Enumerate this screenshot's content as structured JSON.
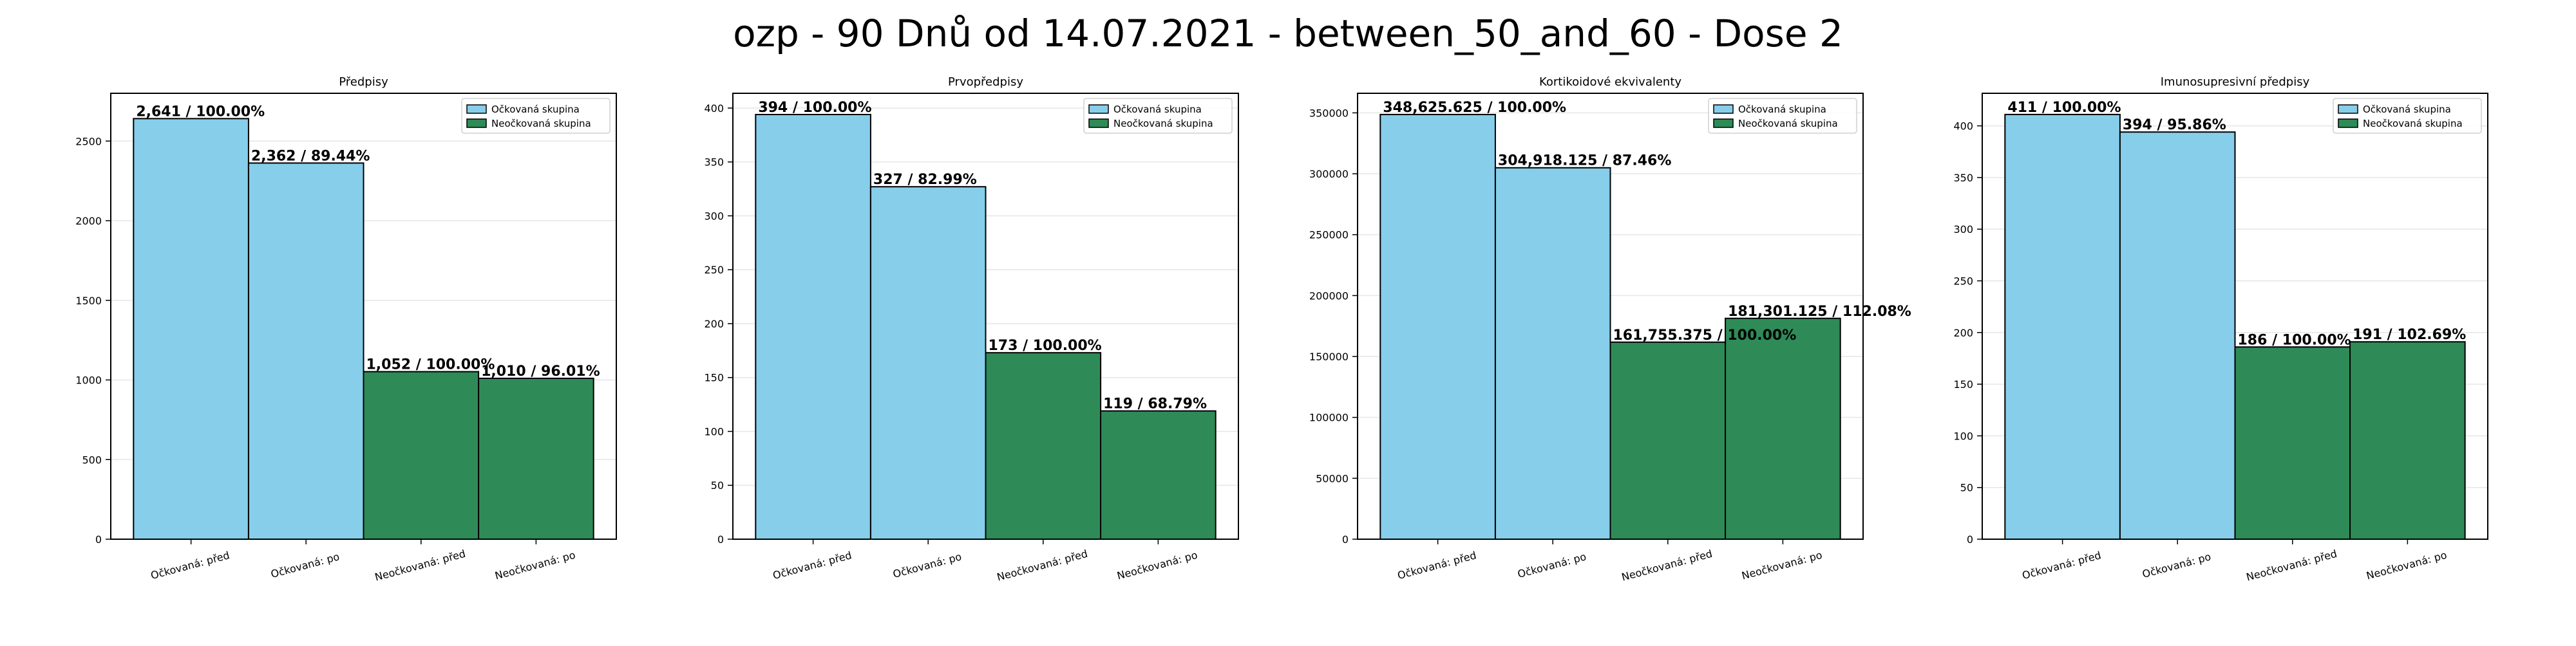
{
  "figure": {
    "suptitle": "ozp - 90 Dnů od 14.07.2021 - between_50_and_60 - Dose 2"
  },
  "colors": {
    "vaccinated": "#87ceeb",
    "unvaccinated": "#2e8b57",
    "edge": "#000000",
    "grid": "#e6e6e6"
  },
  "chart_data": [
    {
      "type": "bar",
      "title": "Předpisy",
      "categories": [
        "Očkovaná: před",
        "Očkovaná: po",
        "Neočkovaná: před",
        "Neočkovaná: po"
      ],
      "values": [
        2641,
        2362,
        1052,
        1010
      ],
      "bar_labels": [
        "2,641 / 100.00%",
        "2,362 / 89.44%",
        "1,052 / 100.00%",
        "1,010 / 96.01%"
      ],
      "groups": [
        "vaccinated",
        "vaccinated",
        "unvaccinated",
        "unvaccinated"
      ],
      "ylim": [
        0,
        2800
      ],
      "yticks": [
        0,
        500,
        1000,
        1500,
        2000,
        2500
      ],
      "ytick_labels": [
        "0",
        "500",
        "1000",
        "1500",
        "2000",
        "2500"
      ],
      "legend": [
        "Očkovaná skupina",
        "Neočkovaná skupina"
      ],
      "legend_position": "top-right",
      "grid": true
    },
    {
      "type": "bar",
      "title": "Prvopředpisy",
      "categories": [
        "Očkovaná: před",
        "Očkovaná: po",
        "Neočkovaná: před",
        "Neočkovaná: po"
      ],
      "values": [
        394,
        327,
        173,
        119
      ],
      "bar_labels": [
        "394 / 100.00%",
        "327 / 82.99%",
        "173 / 100.00%",
        "119 / 68.79%"
      ],
      "groups": [
        "vaccinated",
        "vaccinated",
        "unvaccinated",
        "unvaccinated"
      ],
      "ylim": [
        0,
        413.7
      ],
      "yticks": [
        0,
        50,
        100,
        150,
        200,
        250,
        300,
        350,
        400
      ],
      "ytick_labels": [
        "0",
        "50",
        "100",
        "150",
        "200",
        "250",
        "300",
        "350",
        "400"
      ],
      "legend": [
        "Očkovaná skupina",
        "Neočkovaná skupina"
      ],
      "legend_position": "top-right",
      "grid": true
    },
    {
      "type": "bar",
      "title": "Kortikoidové ekvivalenty",
      "categories": [
        "Očkovaná: před",
        "Očkovaná: po",
        "Neočkovaná: před",
        "Neočkovaná: po"
      ],
      "values": [
        348625.625,
        304918.125,
        161755.375,
        181301.125
      ],
      "bar_labels": [
        "348,625.625 / 100.00%",
        "304,918.125 / 87.46%",
        "161,755.375 / 100.00%",
        "181,301.125 / 112.08%"
      ],
      "groups": [
        "vaccinated",
        "vaccinated",
        "unvaccinated",
        "unvaccinated"
      ],
      "ylim": [
        0,
        366057
      ],
      "yticks": [
        0,
        50000,
        100000,
        150000,
        200000,
        250000,
        300000,
        350000
      ],
      "ytick_labels": [
        "0",
        "50000",
        "100000",
        "150000",
        "200000",
        "250000",
        "300000",
        "350000"
      ],
      "legend": [
        "Očkovaná skupina",
        "Neočkovaná skupina"
      ],
      "legend_position": "top-right",
      "grid": true
    },
    {
      "type": "bar",
      "title": "Imunosupresivní předpisy",
      "categories": [
        "Očkovaná: před",
        "Očkovaná: po",
        "Neočkovaná: před",
        "Neočkovaná: po"
      ],
      "values": [
        411,
        394,
        186,
        191
      ],
      "bar_labels": [
        "411 / 100.00%",
        "394 / 95.86%",
        "186 / 100.00%",
        "191 / 102.69%"
      ],
      "groups": [
        "vaccinated",
        "vaccinated",
        "unvaccinated",
        "unvaccinated"
      ],
      "ylim": [
        0,
        431.5
      ],
      "yticks": [
        0,
        50,
        100,
        150,
        200,
        250,
        300,
        350,
        400
      ],
      "ytick_labels": [
        "0",
        "50",
        "100",
        "150",
        "200",
        "250",
        "300",
        "350",
        "400"
      ],
      "legend": [
        "Očkovaná skupina",
        "Neočkovaná skupina"
      ],
      "legend_position": "top-right",
      "grid": true
    }
  ]
}
